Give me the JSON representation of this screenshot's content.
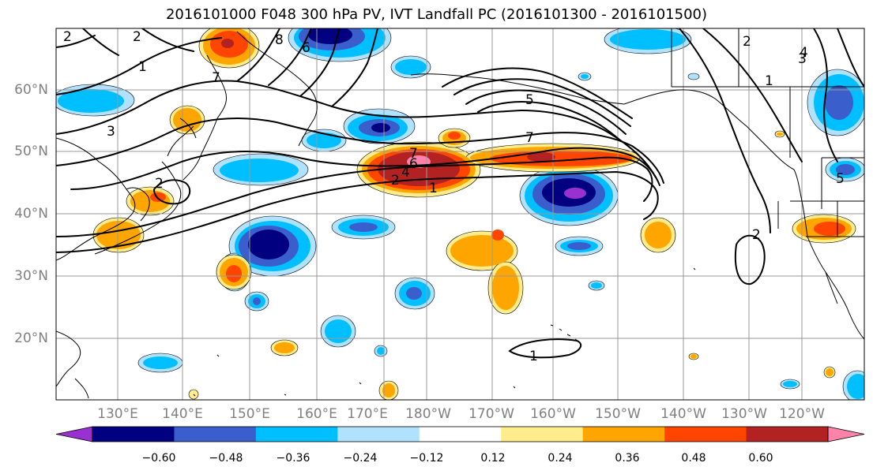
{
  "title": "2016101000 F048 300 hPa PV, IVT Landfall PC (2016101300 - 2016101500)",
  "map": {
    "lat_labels": [
      "60°N",
      "50°N",
      "40°N",
      "30°N",
      "20°N"
    ],
    "lon_labels": [
      "130°E",
      "140°E",
      "150°E",
      "160°E",
      "170°E",
      "180°W",
      "170°W",
      "160°W",
      "150°W",
      "140°W",
      "130°W",
      "120°W"
    ],
    "contour_labels": [
      "2",
      "2",
      "1",
      "8",
      "6",
      "7",
      "5",
      "7",
      "2",
      "1",
      "4",
      "2",
      "3",
      "7",
      "6",
      "4",
      "2",
      "1",
      "5",
      "3",
      "2",
      "1"
    ],
    "gridline_color": "#999999",
    "coastline_color": "#000000"
  },
  "colorbar": {
    "ticks": [
      "−0.60",
      "−0.48",
      "−0.36",
      "−0.24",
      "−0.12",
      "0.12",
      "0.24",
      "0.36",
      "0.48",
      "0.60"
    ],
    "colors": [
      "#9b30d0",
      "#000080",
      "#3a5fcd",
      "#00bfff",
      "#b0e2ff",
      "#ffffff",
      "#ffec8b",
      "#ffa500",
      "#ff4500",
      "#b22222",
      "#ff82ab"
    ],
    "extend": "both"
  }
}
